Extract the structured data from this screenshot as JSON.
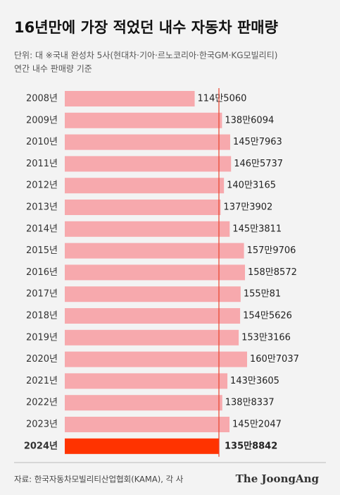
{
  "chart_data": {
    "type": "bar",
    "orientation": "horizontal",
    "title": "16년만에 가장 적었던 내수 자동차 판매량",
    "subtitle": [
      "단위: 대 ※국내 완성차 5사(현대차·기아·르노코리아·한국GM·KG모빌리티)",
      "연간 내수 판매량 기준"
    ],
    "source": "자료: 한국자동차모빌리티산업협회(KAMA), 각 사",
    "brand": "The JoongAng",
    "categories": [
      "2008년",
      "2009년",
      "2010년",
      "2011년",
      "2012년",
      "2013년",
      "2014년",
      "2015년",
      "2016년",
      "2017년",
      "2018년",
      "2019년",
      "2020년",
      "2021년",
      "2022년",
      "2023년",
      "2024년"
    ],
    "values": [
      1145060,
      1386094,
      1457963,
      1465737,
      1403165,
      1373902,
      1453811,
      1579706,
      1588572,
      1550081,
      1545626,
      1533166,
      1607037,
      1433605,
      1388337,
      1452047,
      1358842
    ],
    "value_labels": [
      "114만5060",
      "138만6094",
      "145만7963",
      "146만5737",
      "140만3165",
      "137만3902",
      "145만3811",
      "157만9706",
      "158만8572",
      "155만81",
      "154만5626",
      "153만3166",
      "160만7037",
      "143만3605",
      "138만8337",
      "145만2047",
      "135만8842"
    ],
    "colors": [
      "#f7a9ad",
      "#f7a9ad",
      "#f7a9ad",
      "#f7a9ad",
      "#f7a9ad",
      "#f7a9ad",
      "#f7a9ad",
      "#f7a9ad",
      "#f7a9ad",
      "#f7a9ad",
      "#f7a9ad",
      "#f7a9ad",
      "#f7a9ad",
      "#f7a9ad",
      "#f7a9ad",
      "#f7a9ad",
      "#ff3300"
    ],
    "reference_line_color": "#e8402a"
  }
}
